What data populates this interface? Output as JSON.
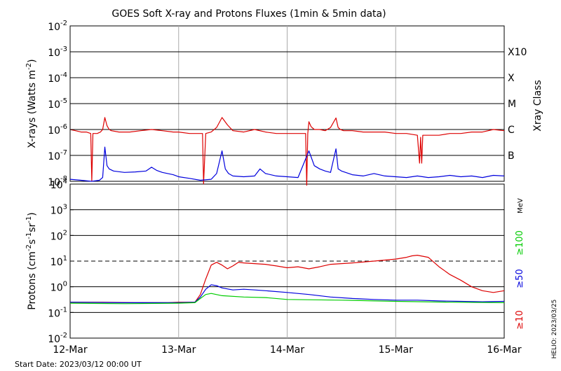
{
  "chart_data": [
    {
      "type": "line",
      "title": "GOES Soft X-ray and Protons Fluxes   (1min & 5min data)",
      "ylabel_main": "X-rays (Watts m",
      "ylabel_sup": "-2",
      "ylabel_close": ")",
      "yscale": "log",
      "ylim": [
        1e-08,
        0.01
      ],
      "ytick_base": "10",
      "ytick_exponents": [
        "-2",
        "-3",
        "-4",
        "-5",
        "-6",
        "-7",
        "-8"
      ],
      "right_axis_title": "Xray Class",
      "class_labels": [
        "X10",
        "X",
        "M",
        "C",
        "B"
      ],
      "class_levels": [
        0.001,
        0.0001,
        1e-05,
        1e-06,
        1e-07
      ],
      "xlim": [
        0,
        4
      ],
      "series": [
        {
          "name": "",
          "color": "#dd0000",
          "x": [
            0.0,
            0.05,
            0.1,
            0.15,
            0.19,
            0.2,
            0.21,
            0.22,
            0.25,
            0.28,
            0.3,
            0.32,
            0.34,
            0.36,
            0.38,
            0.45,
            0.55,
            0.65,
            0.75,
            0.85,
            0.95,
            1.0,
            1.1,
            1.2,
            1.22,
            1.23,
            1.25,
            1.3,
            1.35,
            1.4,
            1.45,
            1.5,
            1.6,
            1.7,
            1.8,
            1.9,
            2.0,
            2.1,
            2.17,
            2.18,
            2.19,
            2.2,
            2.22,
            2.25,
            2.3,
            2.35,
            2.4,
            2.45,
            2.47,
            2.49,
            2.52,
            2.6,
            2.7,
            2.8,
            2.9,
            3.0,
            3.1,
            3.2,
            3.22,
            3.23,
            3.24,
            3.25,
            3.3,
            3.4,
            3.5,
            3.6,
            3.7,
            3.8,
            3.9,
            4.0
          ],
          "y": [
            1e-06,
            9e-07,
            8e-07,
            8e-07,
            7e-07,
            1e-08,
            7e-07,
            7e-07,
            7e-07,
            8e-07,
            1e-06,
            2.9e-06,
            1.4e-06,
            1e-06,
            9e-07,
            8e-07,
            8e-07,
            9e-07,
            1e-06,
            9e-07,
            8e-07,
            8e-07,
            7e-07,
            7e-07,
            7e-07,
            8e-09,
            7e-07,
            8e-07,
            1.2e-06,
            2.9e-06,
            1.5e-06,
            9e-07,
            8e-07,
            1e-06,
            8e-07,
            7e-07,
            7e-07,
            7e-07,
            7e-07,
            7e-09,
            7e-07,
            2e-06,
            1.3e-06,
            1e-06,
            1e-06,
            9e-07,
            1.2e-06,
            2.8e-06,
            1.2e-06,
            1e-06,
            9e-07,
            9e-07,
            8e-07,
            8e-07,
            8e-07,
            7e-07,
            7e-07,
            6e-07,
            5e-08,
            5e-07,
            5e-08,
            6e-07,
            6e-07,
            6e-07,
            7e-07,
            7e-07,
            8e-07,
            8e-07,
            1e-06,
            9e-07
          ]
        },
        {
          "name": "",
          "color": "#0000dd",
          "x": [
            0.0,
            0.1,
            0.2,
            0.27,
            0.3,
            0.32,
            0.34,
            0.36,
            0.4,
            0.5,
            0.6,
            0.7,
            0.75,
            0.8,
            0.85,
            0.95,
            1.0,
            1.1,
            1.2,
            1.3,
            1.35,
            1.4,
            1.43,
            1.46,
            1.5,
            1.6,
            1.7,
            1.75,
            1.8,
            1.9,
            2.0,
            2.1,
            2.2,
            2.25,
            2.3,
            2.35,
            2.4,
            2.45,
            2.47,
            2.5,
            2.6,
            2.7,
            2.8,
            2.9,
            3.0,
            3.1,
            3.2,
            3.3,
            3.4,
            3.5,
            3.6,
            3.7,
            3.8,
            3.9,
            4.0
          ],
          "y": [
            1.2e-08,
            1.1e-08,
            1e-08,
            1.1e-08,
            1.4e-08,
            2.1e-07,
            4e-08,
            3e-08,
            2.5e-08,
            2.2e-08,
            2.3e-08,
            2.5e-08,
            3.5e-08,
            2.6e-08,
            2.2e-08,
            1.8e-08,
            1.5e-08,
            1.3e-08,
            1.1e-08,
            1.2e-08,
            2e-08,
            1.5e-07,
            3e-08,
            2e-08,
            1.6e-08,
            1.5e-08,
            1.6e-08,
            3e-08,
            2e-08,
            1.6e-08,
            1.5e-08,
            1.4e-08,
            1.5e-07,
            4e-08,
            3e-08,
            2.5e-08,
            2.2e-08,
            1.8e-07,
            3e-08,
            2.5e-08,
            1.8e-08,
            1.6e-08,
            2e-08,
            1.6e-08,
            1.5e-08,
            1.4e-08,
            1.6e-08,
            1.4e-08,
            1.5e-08,
            1.7e-08,
            1.5e-08,
            1.6e-08,
            1.4e-08,
            1.7e-08,
            1.6e-08
          ]
        }
      ]
    },
    {
      "type": "line",
      "ylabel_main": "Protons (cm",
      "ylabel_mid_sup": "-2",
      "ylabel_mid": "s",
      "ylabel_mid2_sup": "-1",
      "ylabel_mid2": "sr",
      "ylabel_end_sup": "-1",
      "ylabel_close": ")",
      "yscale": "log",
      "ylim": [
        0.01,
        10000
      ],
      "ytick_base": "10",
      "ytick_exponents": [
        "4",
        "3",
        "2",
        "1",
        "0",
        "-1",
        "-2"
      ],
      "threshold": 10,
      "right_labels": [
        "MeV",
        "≥100",
        "≥50",
        "≥10"
      ],
      "right_label_colors": [
        "#000000",
        "#00cc00",
        "#0000dd",
        "#dd0000"
      ],
      "xlim": [
        0,
        4
      ],
      "categories": [
        "12-Mar",
        "13-Mar",
        "14-Mar",
        "15-Mar",
        "16-Mar"
      ],
      "series": [
        {
          "name": "≥10",
          "color": "#dd0000",
          "x": [
            0.0,
            0.3,
            0.6,
            0.9,
            1.0,
            1.15,
            1.2,
            1.25,
            1.3,
            1.35,
            1.4,
            1.45,
            1.5,
            1.55,
            1.6,
            1.7,
            1.8,
            1.9,
            2.0,
            2.1,
            2.2,
            2.3,
            2.4,
            2.5,
            2.6,
            2.8,
            3.0,
            3.1,
            3.15,
            3.2,
            3.3,
            3.4,
            3.5,
            3.6,
            3.7,
            3.8,
            3.9,
            4.0
          ],
          "y": [
            0.25,
            0.25,
            0.24,
            0.24,
            0.25,
            0.25,
            0.5,
            2,
            7,
            9,
            7,
            5,
            6.5,
            9,
            8.5,
            8,
            7.5,
            6.5,
            5.5,
            6,
            5,
            6,
            7.5,
            8,
            8.5,
            10,
            12,
            14,
            16,
            17,
            14,
            6,
            3,
            1.8,
            1,
            0.7,
            0.6,
            0.7
          ]
        },
        {
          "name": "≥50",
          "color": "#0000dd",
          "x": [
            0.0,
            0.5,
            1.0,
            1.15,
            1.2,
            1.25,
            1.3,
            1.35,
            1.4,
            1.5,
            1.6,
            1.7,
            1.8,
            2.0,
            2.2,
            2.4,
            2.6,
            2.8,
            3.0,
            3.2,
            3.4,
            3.6,
            3.8,
            4.0
          ],
          "y": [
            0.25,
            0.24,
            0.24,
            0.25,
            0.4,
            0.8,
            1.2,
            1.1,
            0.9,
            0.75,
            0.8,
            0.75,
            0.7,
            0.6,
            0.5,
            0.4,
            0.35,
            0.32,
            0.3,
            0.3,
            0.28,
            0.27,
            0.26,
            0.27
          ]
        },
        {
          "name": "≥100",
          "color": "#00cc00",
          "x": [
            0.0,
            0.5,
            1.0,
            1.15,
            1.2,
            1.25,
            1.3,
            1.4,
            1.6,
            1.8,
            2.0,
            2.5,
            3.0,
            3.5,
            4.0
          ],
          "y": [
            0.23,
            0.22,
            0.23,
            0.24,
            0.35,
            0.5,
            0.55,
            0.45,
            0.4,
            0.38,
            0.32,
            0.3,
            0.27,
            0.25,
            0.24
          ]
        }
      ]
    }
  ],
  "footer": {
    "start_date": "Start Date: 2023/03/12 00:00 UT",
    "side_stamp": "HELIO: 2023/03/25"
  }
}
